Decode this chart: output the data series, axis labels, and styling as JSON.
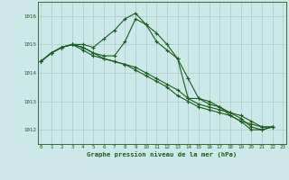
{
  "background_color": "#cce8e8",
  "grid_color": "#aacccc",
  "line_color": "#1a5c1a",
  "marker_color": "#1a5c1a",
  "xlabel": "Graphe pression niveau de la mer (hPa)",
  "xlabel_color": "#1a5c1a",
  "ylabel_ticks": [
    1012,
    1013,
    1014,
    1015,
    1016
  ],
  "xticks": [
    0,
    1,
    2,
    3,
    4,
    5,
    6,
    7,
    8,
    9,
    10,
    11,
    12,
    13,
    14,
    15,
    16,
    17,
    18,
    19,
    20,
    21,
    22,
    23
  ],
  "ylim": [
    1011.5,
    1016.5
  ],
  "xlim": [
    -0.3,
    23.3
  ],
  "series": [
    [
      1014.4,
      1014.7,
      1014.9,
      1015.0,
      1015.0,
      1014.9,
      1015.2,
      1015.5,
      1015.9,
      1016.1,
      1015.7,
      1015.4,
      1015.0,
      1014.5,
      1013.8,
      1013.1,
      1012.9,
      1012.8,
      1012.6,
      1012.4,
      1012.1,
      1012.0,
      1012.1,
      null
    ],
    [
      1014.4,
      1014.7,
      1014.9,
      1015.0,
      1014.9,
      1014.7,
      1014.6,
      1014.6,
      1015.1,
      1015.9,
      1015.7,
      1015.1,
      1014.8,
      1014.5,
      1013.1,
      1013.1,
      1013.0,
      1012.8,
      1012.5,
      1012.3,
      1012.0,
      1012.0,
      1012.1,
      null
    ],
    [
      1014.4,
      1014.7,
      1014.9,
      1015.0,
      1014.8,
      1014.6,
      1014.5,
      1014.4,
      1014.3,
      1014.2,
      1014.0,
      1013.8,
      1013.6,
      1013.4,
      1013.1,
      1012.9,
      1012.8,
      1012.7,
      1012.6,
      1012.5,
      1012.3,
      1012.1,
      1012.1,
      null
    ],
    [
      1014.4,
      1014.7,
      1014.9,
      1015.0,
      1014.9,
      1014.7,
      1014.5,
      1014.4,
      1014.3,
      1014.1,
      1013.9,
      1013.7,
      1013.5,
      1013.2,
      1013.0,
      1012.8,
      1012.7,
      1012.6,
      1012.5,
      1012.3,
      1012.2,
      1012.1,
      1012.1,
      null
    ]
  ]
}
